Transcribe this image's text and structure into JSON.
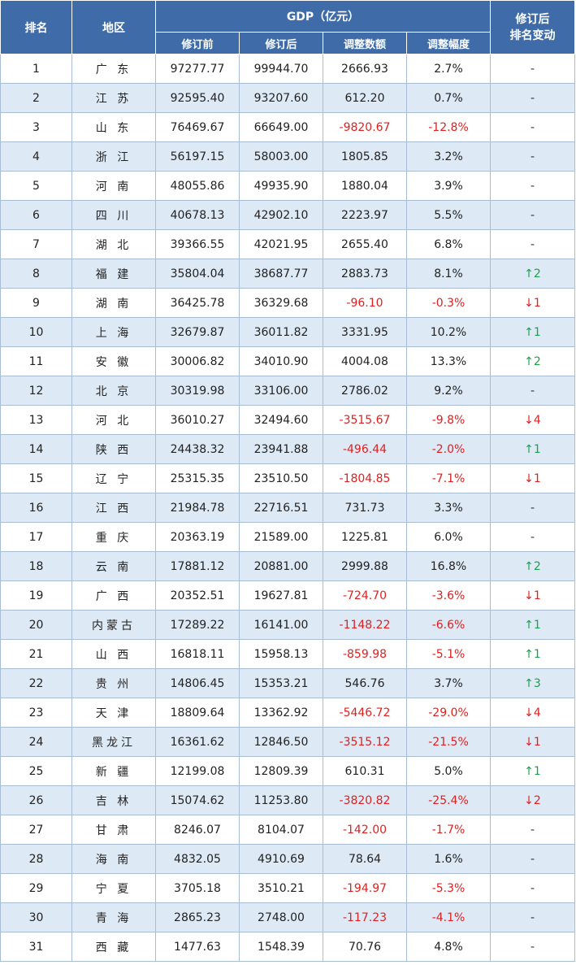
{
  "headers": {
    "rank": "排名",
    "region": "地区",
    "gdp_group": "GDP（亿元）",
    "before": "修订前",
    "after": "修订后",
    "adjust_amount": "调整数额",
    "adjust_pct": "调整幅度",
    "rank_change_line1": "修订后",
    "rank_change_line2": "排名变动"
  },
  "colors": {
    "header_bg": "#3f6ca8",
    "alt_row_bg": "#dde9f5",
    "negative": "#e02020",
    "rank_up": "#1aa14a",
    "rank_down": "#e02020"
  },
  "rows": [
    {
      "rank": "1",
      "region": "广 东",
      "before": "97277.77",
      "after": "99944.70",
      "amount": "2666.93",
      "pct": "2.7%",
      "change": "-"
    },
    {
      "rank": "2",
      "region": "江 苏",
      "before": "92595.40",
      "after": "93207.60",
      "amount": "612.20",
      "pct": "0.7%",
      "change": "-"
    },
    {
      "rank": "3",
      "region": "山 东",
      "before": "76469.67",
      "after": "66649.00",
      "amount": "-9820.67",
      "pct": "-12.8%",
      "change": "-"
    },
    {
      "rank": "4",
      "region": "浙 江",
      "before": "56197.15",
      "after": "58003.00",
      "amount": "1805.85",
      "pct": "3.2%",
      "change": "-"
    },
    {
      "rank": "5",
      "region": "河 南",
      "before": "48055.86",
      "after": "49935.90",
      "amount": "1880.04",
      "pct": "3.9%",
      "change": "-"
    },
    {
      "rank": "6",
      "region": "四 川",
      "before": "40678.13",
      "after": "42902.10",
      "amount": "2223.97",
      "pct": "5.5%",
      "change": "-"
    },
    {
      "rank": "7",
      "region": "湖 北",
      "before": "39366.55",
      "after": "42021.95",
      "amount": "2655.40",
      "pct": "6.8%",
      "change": "-"
    },
    {
      "rank": "8",
      "region": "福 建",
      "before": "35804.04",
      "after": "38687.77",
      "amount": "2883.73",
      "pct": "8.1%",
      "change": "↑2"
    },
    {
      "rank": "9",
      "region": "湖 南",
      "before": "36425.78",
      "after": "36329.68",
      "amount": "-96.10",
      "pct": "-0.3%",
      "change": "↓1"
    },
    {
      "rank": "10",
      "region": "上 海",
      "before": "32679.87",
      "after": "36011.82",
      "amount": "3331.95",
      "pct": "10.2%",
      "change": "↑1"
    },
    {
      "rank": "11",
      "region": "安 徽",
      "before": "30006.82",
      "after": "34010.90",
      "amount": "4004.08",
      "pct": "13.3%",
      "change": "↑2"
    },
    {
      "rank": "12",
      "region": "北 京",
      "before": "30319.98",
      "after": "33106.00",
      "amount": "2786.02",
      "pct": "9.2%",
      "change": "-"
    },
    {
      "rank": "13",
      "region": "河 北",
      "before": "36010.27",
      "after": "32494.60",
      "amount": "-3515.67",
      "pct": "-9.8%",
      "change": "↓4"
    },
    {
      "rank": "14",
      "region": "陕 西",
      "before": "24438.32",
      "after": "23941.88",
      "amount": "-496.44",
      "pct": "-2.0%",
      "change": "↑1"
    },
    {
      "rank": "15",
      "region": "辽 宁",
      "before": "25315.35",
      "after": "23510.50",
      "amount": "-1804.85",
      "pct": "-7.1%",
      "change": "↓1"
    },
    {
      "rank": "16",
      "region": "江 西",
      "before": "21984.78",
      "after": "22716.51",
      "amount": "731.73",
      "pct": "3.3%",
      "change": "-"
    },
    {
      "rank": "17",
      "region": "重 庆",
      "before": "20363.19",
      "after": "21589.00",
      "amount": "1225.81",
      "pct": "6.0%",
      "change": "-"
    },
    {
      "rank": "18",
      "region": "云 南",
      "before": "17881.12",
      "after": "20881.00",
      "amount": "2999.88",
      "pct": "16.8%",
      "change": "↑2"
    },
    {
      "rank": "19",
      "region": "广 西",
      "before": "20352.51",
      "after": "19627.81",
      "amount": "-724.70",
      "pct": "-3.6%",
      "change": "↓1"
    },
    {
      "rank": "20",
      "region": "内蒙古",
      "before": "17289.22",
      "after": "16141.00",
      "amount": "-1148.22",
      "pct": "-6.6%",
      "change": "↑1"
    },
    {
      "rank": "21",
      "region": "山 西",
      "before": "16818.11",
      "after": "15958.13",
      "amount": "-859.98",
      "pct": "-5.1%",
      "change": "↑1"
    },
    {
      "rank": "22",
      "region": "贵 州",
      "before": "14806.45",
      "after": "15353.21",
      "amount": "546.76",
      "pct": "3.7%",
      "change": "↑3"
    },
    {
      "rank": "23",
      "region": "天 津",
      "before": "18809.64",
      "after": "13362.92",
      "amount": "-5446.72",
      "pct": "-29.0%",
      "change": "↓4"
    },
    {
      "rank": "24",
      "region": "黑龙江",
      "before": "16361.62",
      "after": "12846.50",
      "amount": "-3515.12",
      "pct": "-21.5%",
      "change": "↓1"
    },
    {
      "rank": "25",
      "region": "新 疆",
      "before": "12199.08",
      "after": "12809.39",
      "amount": "610.31",
      "pct": "5.0%",
      "change": "↑1"
    },
    {
      "rank": "26",
      "region": "吉 林",
      "before": "15074.62",
      "after": "11253.80",
      "amount": "-3820.82",
      "pct": "-25.4%",
      "change": "↓2"
    },
    {
      "rank": "27",
      "region": "甘 肃",
      "before": "8246.07",
      "after": "8104.07",
      "amount": "-142.00",
      "pct": "-1.7%",
      "change": "-"
    },
    {
      "rank": "28",
      "region": "海 南",
      "before": "4832.05",
      "after": "4910.69",
      "amount": "78.64",
      "pct": "1.6%",
      "change": "-"
    },
    {
      "rank": "29",
      "region": "宁 夏",
      "before": "3705.18",
      "after": "3510.21",
      "amount": "-194.97",
      "pct": "-5.3%",
      "change": "-"
    },
    {
      "rank": "30",
      "region": "青 海",
      "before": "2865.23",
      "after": "2748.00",
      "amount": "-117.23",
      "pct": "-4.1%",
      "change": "-"
    },
    {
      "rank": "31",
      "region": "西 藏",
      "before": "1477.63",
      "after": "1548.39",
      "amount": "70.76",
      "pct": "4.8%",
      "change": "-"
    }
  ]
}
